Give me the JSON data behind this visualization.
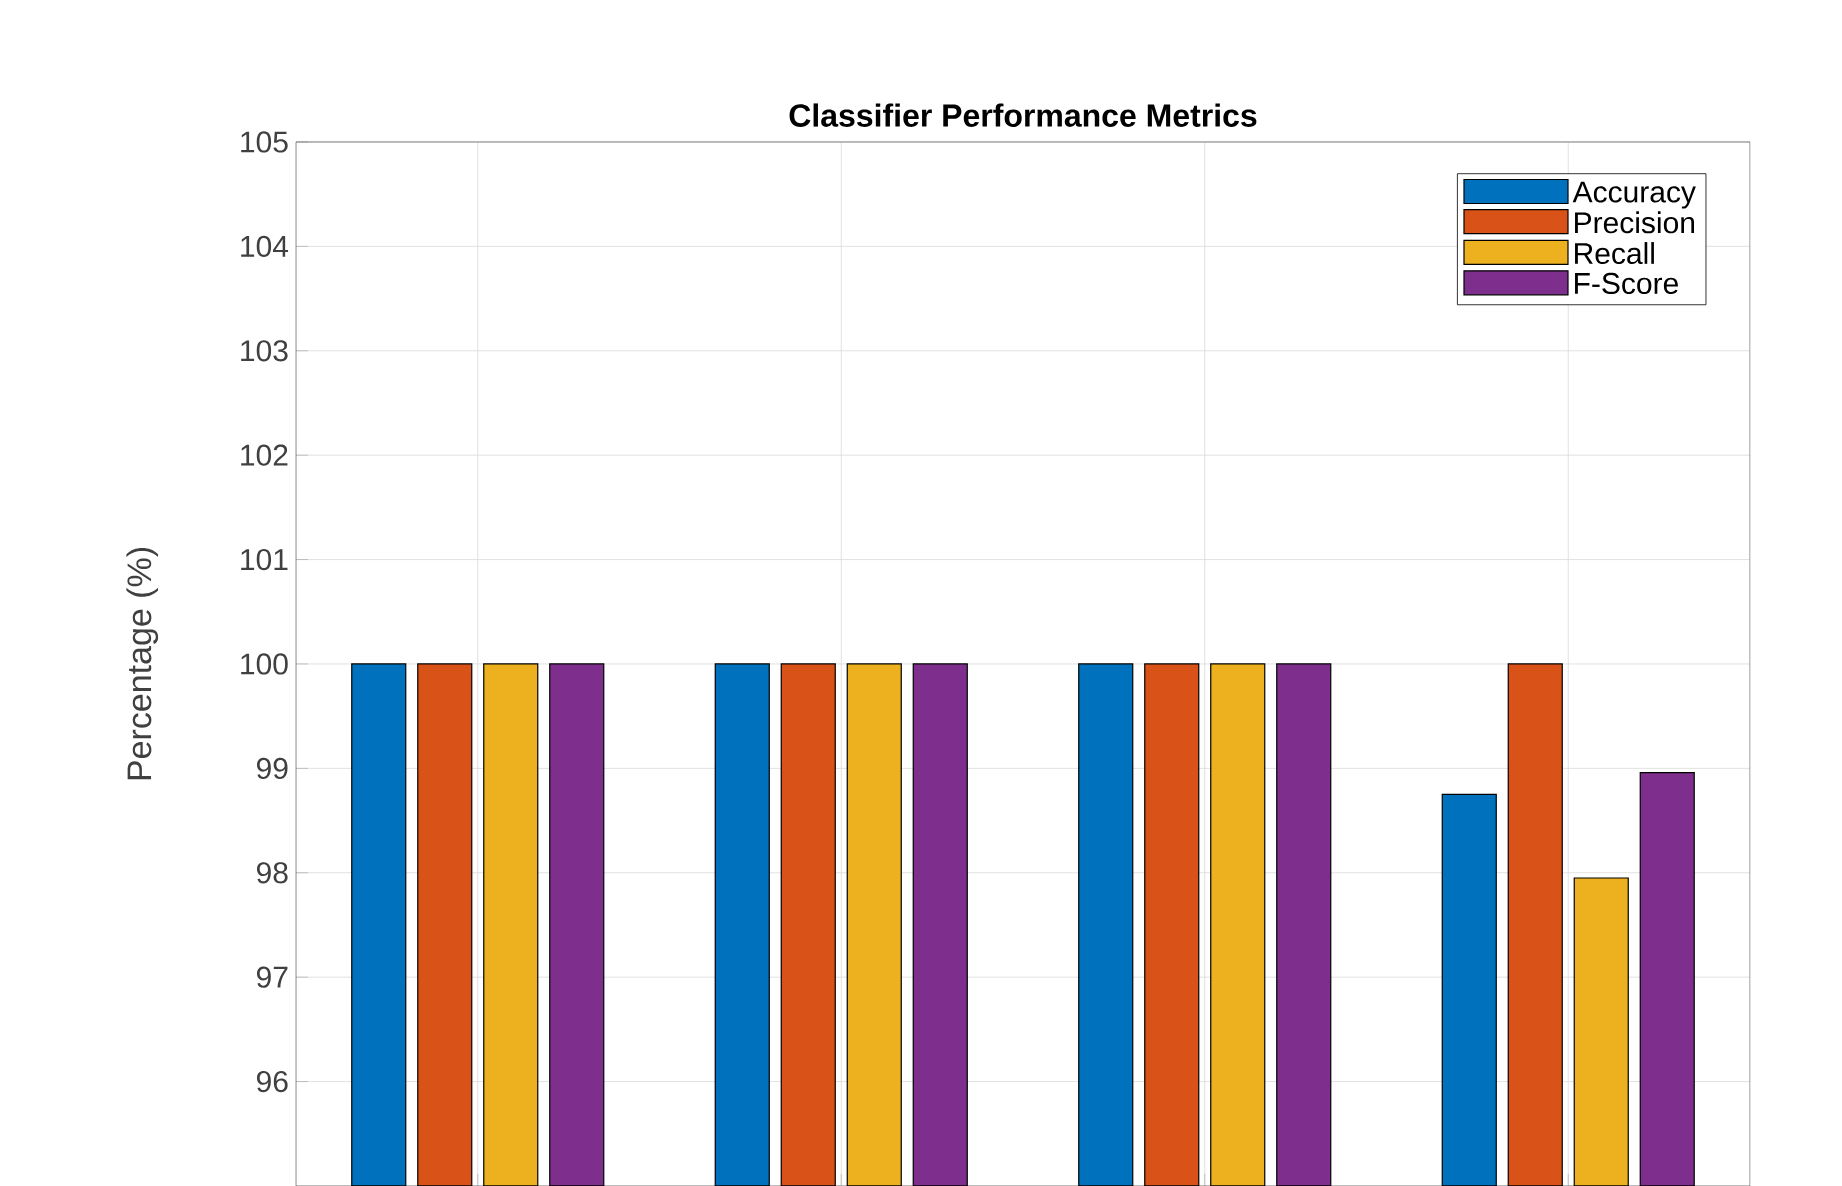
{
  "chart_data": {
    "type": "bar",
    "title": "Classifier Performance Metrics",
    "ylabel": "Percentage (%)",
    "categories": [
      null,
      null,
      null,
      null
    ],
    "series": [
      {
        "name": "Accuracy",
        "color": "#0072bd",
        "values": [
          100,
          100,
          100,
          98.75
        ]
      },
      {
        "name": "Precision",
        "color": "#d95319",
        "values": [
          100,
          100,
          100,
          100
        ]
      },
      {
        "name": "Recall",
        "color": "#edb120",
        "values": [
          100,
          100,
          100,
          97.95
        ]
      },
      {
        "name": "F-Score",
        "color": "#7e2f8e",
        "values": [
          100,
          100,
          100,
          98.96
        ]
      }
    ],
    "ylim": [
      95,
      105
    ],
    "yticks": [
      96,
      97,
      98,
      99,
      100,
      101,
      102,
      103,
      104,
      105
    ],
    "grid": true,
    "legend": "top right",
    "tick_labels": "y"
  }
}
